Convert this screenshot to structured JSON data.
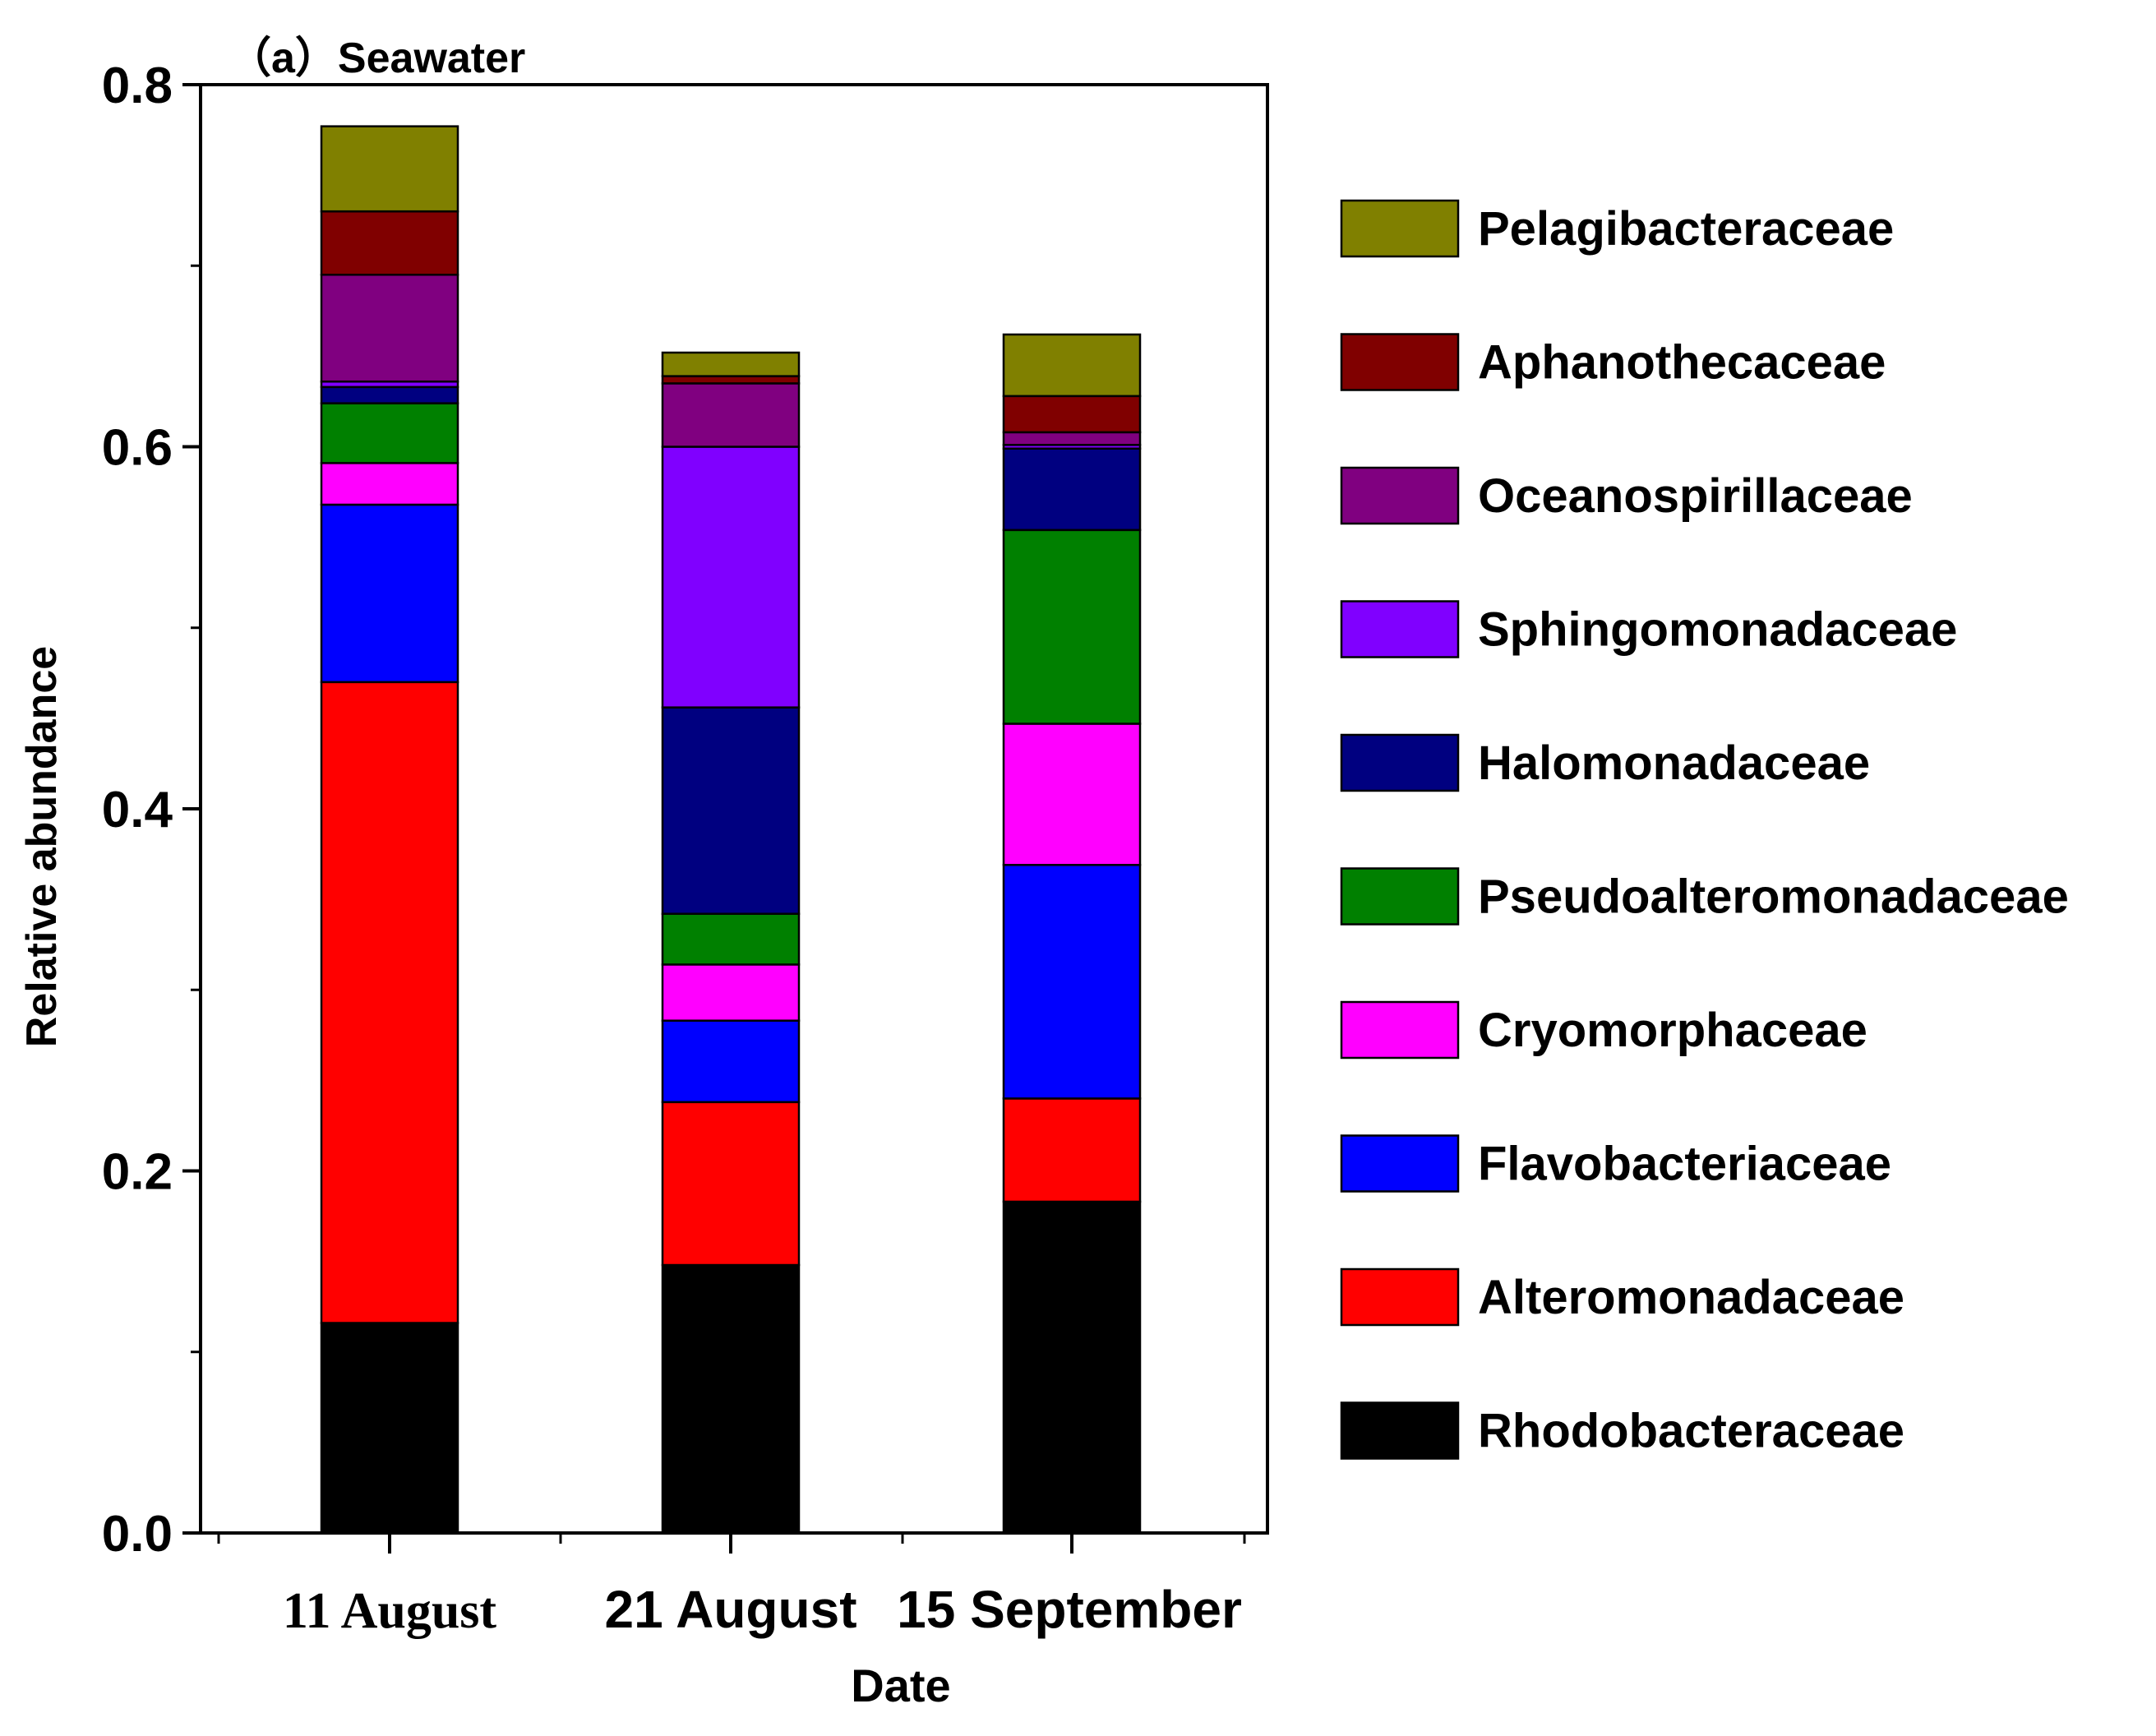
{
  "chart_data": {
    "type": "bar",
    "stacked": true,
    "title": "（a）Seawater",
    "xlabel": "Date",
    "ylabel": "Relative abundance",
    "ylim": [
      0,
      0.8
    ],
    "yticks": [
      "0.0",
      "0.2",
      "0.4",
      "0.6",
      "0.8"
    ],
    "categories": [
      "11 August",
      "21 August",
      "15 September"
    ],
    "legend_position": "right",
    "series": [
      {
        "name": "Rhodobacteraceae",
        "color": "#000000",
        "values": [
          0.116,
          0.148,
          0.183
        ]
      },
      {
        "name": "Alteromonadaceae",
        "color": "#ff0000",
        "values": [
          0.354,
          0.09,
          0.057
        ]
      },
      {
        "name": "Flavobacteriaceae",
        "color": "#0000ff",
        "values": [
          0.098,
          0.045,
          0.129
        ]
      },
      {
        "name": "Cryomorphaceae",
        "color": "#ff00ff",
        "values": [
          0.023,
          0.031,
          0.078
        ]
      },
      {
        "name": "Pseudoalteromonadaceae",
        "color": "#008000",
        "values": [
          0.033,
          0.028,
          0.107
        ]
      },
      {
        "name": "Halomonadaceae",
        "color": "#000080",
        "values": [
          0.009,
          0.114,
          0.045
        ]
      },
      {
        "name": "Sphingomonadaceae",
        "color": "#8000ff",
        "values": [
          0.003,
          0.144,
          0.002
        ]
      },
      {
        "name": "Oceanospirillaceae",
        "color": "#800080",
        "values": [
          0.059,
          0.035,
          0.007
        ]
      },
      {
        "name": "Aphanothecaceae",
        "color": "#800000",
        "values": [
          0.035,
          0.004,
          0.02
        ]
      },
      {
        "name": "Pelagibacteraceae",
        "color": "#808000",
        "values": [
          0.047,
          0.013,
          0.034
        ]
      }
    ]
  }
}
